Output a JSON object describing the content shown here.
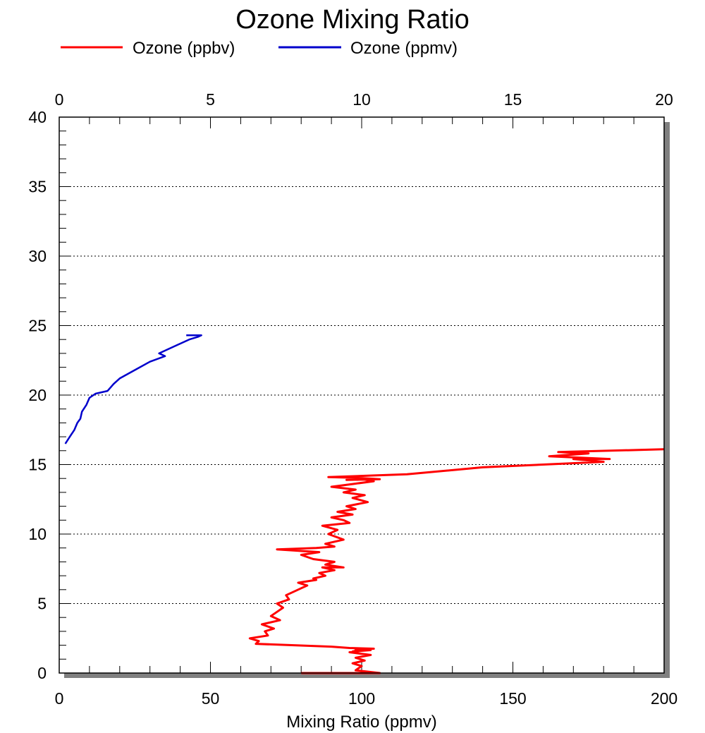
{
  "chart_data": {
    "type": "line",
    "title": "Ozone Mixing Ratio",
    "xlabel": "Mixing Ratio (ppmv)",
    "ylabel": "",
    "xlim": [
      0,
      200
    ],
    "x2lim": [
      0,
      20
    ],
    "ylim": [
      0,
      40
    ],
    "x_ticks": [
      "0",
      "50",
      "100",
      "150",
      "200"
    ],
    "x2_ticks": [
      "0",
      "5",
      "10",
      "15",
      "20"
    ],
    "y_ticks": [
      "0",
      "5",
      "10",
      "15",
      "20",
      "25",
      "30",
      "35",
      "40"
    ],
    "grid": "horizontal dotted",
    "legend_position": "top",
    "series": [
      {
        "name": "Ozone (ppbv)",
        "axis": "bottom",
        "color": "#ff0000",
        "x": [
          80,
          106,
          98,
          100,
          97,
          101,
          98,
          103,
          96,
          100,
          98,
          103,
          97,
          100,
          104,
          96,
          90,
          65,
          66,
          63,
          69,
          68,
          71,
          67,
          73,
          70,
          72,
          74,
          72,
          76,
          75,
          78,
          80,
          82,
          79,
          85,
          84,
          88,
          86,
          91,
          87,
          94,
          88,
          91,
          84,
          80,
          86,
          72,
          85,
          91,
          88,
          94,
          89,
          92,
          87,
          96,
          94,
          90,
          97,
          92,
          98,
          95,
          102,
          97,
          101,
          94,
          98,
          90,
          97,
          104,
          100,
          95,
          106,
          98,
          89,
          115,
          140,
          160,
          180,
          170,
          182,
          162,
          175,
          165,
          200
        ],
        "y": [
          0,
          0,
          0.2,
          0.5,
          0.7,
          0.9,
          1.1,
          1.3,
          1.5,
          1.6,
          1.7,
          1.65,
          1.55,
          1.7,
          1.75,
          1.8,
          1.9,
          2.1,
          2.3,
          2.5,
          2.7,
          3.0,
          3.2,
          3.5,
          3.8,
          4.1,
          4.4,
          4.7,
          5.0,
          5.3,
          5.6,
          5.9,
          6.1,
          6.3,
          6.5,
          6.7,
          6.8,
          7.0,
          7.2,
          7.4,
          7.6,
          7.6,
          7.8,
          8.0,
          8.2,
          8.5,
          8.7,
          8.9,
          9.0,
          9.1,
          9.3,
          9.6,
          10.0,
          10.3,
          10.6,
          10.8,
          11.0,
          11.2,
          11.4,
          11.6,
          11.8,
          12.0,
          12.3,
          12.6,
          12.8,
          13.0,
          13.2,
          13.4,
          13.6,
          13.8,
          13.95,
          13.9,
          13.95,
          14.05,
          14.1,
          14.3,
          14.8,
          15.0,
          15.2,
          15.4,
          15.4,
          15.6,
          15.8,
          15.9,
          16.1
        ]
      },
      {
        "name": "Ozone (ppmv)",
        "axis": "top",
        "color": "#0000cc",
        "x": [
          0.2,
          0.35,
          0.5,
          0.6,
          0.7,
          0.75,
          0.9,
          1.0,
          1.2,
          1.6,
          1.8,
          2.0,
          2.5,
          3.0,
          3.5,
          3.3,
          3.7,
          4.0,
          4.3,
          4.6,
          4.7,
          4.5,
          4.2
        ],
        "y": [
          16.5,
          17.0,
          17.5,
          18.0,
          18.3,
          18.8,
          19.3,
          19.8,
          20.1,
          20.3,
          20.8,
          21.2,
          21.8,
          22.4,
          22.8,
          23.0,
          23.4,
          23.7,
          24.0,
          24.2,
          24.3,
          24.3,
          24.3
        ]
      }
    ]
  }
}
